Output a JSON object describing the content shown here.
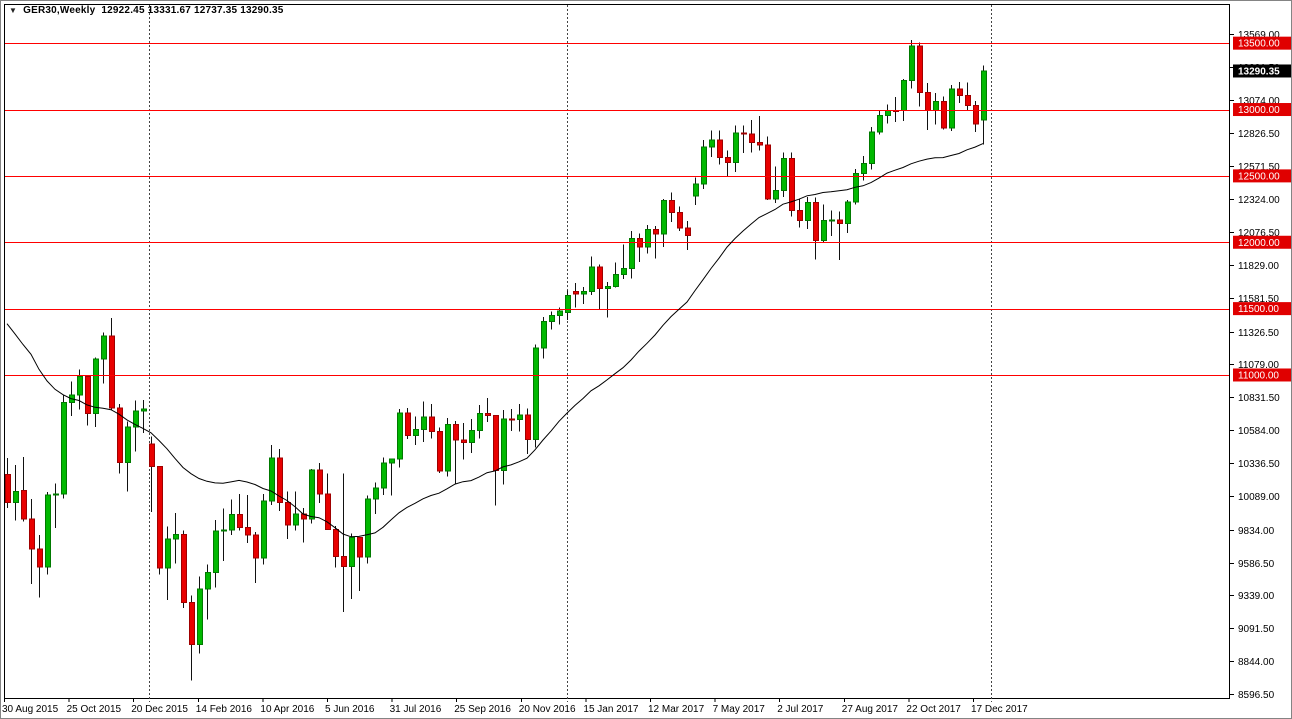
{
  "header": {
    "symbol_timeframe": "GER30,Weekly",
    "ohlc_text": "12922.45 13331.67 12737.35 13290.35",
    "dropdown_arrow": "▼"
  },
  "colors": {
    "background": "#ffffff",
    "plot_border": "#000000",
    "bull_fill": "#00b800",
    "bull_border": "#007a00",
    "bear_fill": "#e80000",
    "bear_border": "#a00000",
    "wick": "#111111",
    "level_line": "#ff0000",
    "level_badge_bg": "#e00000",
    "current_badge_bg": "#000000",
    "badge_text": "#ffffff",
    "axis_text": "#000000",
    "ma_line": "#000000",
    "year_separator": "#444444"
  },
  "chart_data": {
    "type": "candlestick",
    "title": "GER30,Weekly",
    "symbol": "GER30",
    "timeframe": "Weekly",
    "last_candle_ohlc": {
      "open": 12922.45,
      "high": 13331.67,
      "low": 12737.35,
      "close": 13290.35
    },
    "current_price": 13290.35,
    "y_axis": {
      "min": 8596.5,
      "max": 13569.0,
      "ticks": [
        13569.0,
        13321.5,
        13074.0,
        12826.5,
        12571.5,
        12324.0,
        12076.5,
        11829.0,
        11581.5,
        11326.5,
        11079.0,
        10831.5,
        10584.0,
        10336.5,
        10089.0,
        9834.0,
        9586.5,
        9339.0,
        9091.5,
        8844.0,
        8596.5
      ]
    },
    "horizontal_levels": [
      13500.0,
      13000.0,
      12500.0,
      12000.0,
      11500.0,
      11000.0
    ],
    "x_axis": {
      "labels": [
        "30 Aug 2015",
        "25 Oct 2015",
        "20 Dec 2015",
        "14 Feb 2016",
        "10 Apr 2016",
        "5 Jun 2016",
        "31 Jul 2016",
        "25 Sep 2016",
        "20 Nov 2016",
        "15 Jan 2017",
        "12 Mar 2017",
        "7 May 2017",
        "2 Jul 2017",
        "27 Aug 2017",
        "22 Oct 2017",
        "17 Dec 2017"
      ],
      "weeks_per_label": 8
    },
    "year_separator_weeks": [
      17.75,
      70,
      123
    ],
    "ma": {
      "period": 25,
      "pre_closes": [
        12039,
        11901,
        11551,
        12374,
        12272,
        11689,
        11811,
        11587,
        11350,
        11532,
        11568,
        11459,
        11040,
        11196,
        11673,
        11574,
        11490,
        11154,
        10985,
        11327,
        11604,
        11014,
        10124,
        10299
      ]
    },
    "candles": [
      [
        10250,
        10373,
        9997,
        10038
      ],
      [
        10040,
        10320,
        9902,
        10123
      ],
      [
        10130,
        10383,
        9897,
        9916
      ],
      [
        9916,
        10065,
        9427,
        9688
      ],
      [
        9688,
        9794,
        9325,
        9553
      ],
      [
        9553,
        10120,
        9495,
        10096
      ],
      [
        10096,
        10181,
        9848,
        10104
      ],
      [
        10104,
        10850,
        10070,
        10794
      ],
      [
        10794,
        10950,
        10692,
        10850
      ],
      [
        10850,
        11040,
        10741,
        10988
      ],
      [
        10988,
        11000,
        10620,
        10708
      ],
      [
        10708,
        11130,
        10608,
        11120
      ],
      [
        11120,
        11321,
        10937,
        11293
      ],
      [
        11293,
        11430,
        10741,
        10752
      ],
      [
        10752,
        10780,
        10259,
        10340
      ],
      [
        10340,
        10650,
        10123,
        10608
      ],
      [
        10608,
        10808,
        10424,
        10727
      ],
      [
        10727,
        10810,
        10562,
        10743
      ],
      [
        10480,
        10535,
        9969,
        10310
      ],
      [
        10310,
        10310,
        9498,
        9545
      ],
      [
        9545,
        9860,
        9305,
        9764
      ],
      [
        9764,
        9960,
        9580,
        9798
      ],
      [
        9798,
        9829,
        9243,
        9286
      ],
      [
        9286,
        9340,
        8699,
        8968
      ],
      [
        8968,
        9480,
        8900,
        9388
      ],
      [
        9388,
        9573,
        9157,
        9513
      ],
      [
        9513,
        9907,
        9400,
        9824
      ],
      [
        9824,
        9995,
        9600,
        9831
      ],
      [
        9831,
        10060,
        9796,
        9950
      ],
      [
        9950,
        10104,
        9830,
        9851
      ],
      [
        9851,
        10094,
        9733,
        9794
      ],
      [
        9794,
        9818,
        9432,
        9622
      ],
      [
        9622,
        10104,
        9571,
        10051
      ],
      [
        10051,
        10474,
        10021,
        10373
      ],
      [
        10373,
        10444,
        9975,
        10039
      ],
      [
        10039,
        10123,
        9763,
        9870
      ],
      [
        9870,
        10123,
        9829,
        9952
      ],
      [
        9952,
        9998,
        9737,
        9916
      ],
      [
        9916,
        10290,
        9880,
        10286
      ],
      [
        10286,
        10335,
        10036,
        10103
      ],
      [
        10103,
        10259,
        9832,
        9834
      ],
      [
        9834,
        9864,
        9550,
        9631
      ],
      [
        9631,
        10257,
        9214,
        9557
      ],
      [
        9557,
        9806,
        9314,
        9776
      ],
      [
        9776,
        9780,
        9373,
        9629
      ],
      [
        9629,
        10093,
        9580,
        10067
      ],
      [
        10067,
        10190,
        9953,
        10147
      ],
      [
        10147,
        10377,
        10094,
        10337
      ],
      [
        10337,
        10371,
        10092,
        10367
      ],
      [
        10367,
        10744,
        10302,
        10713
      ],
      [
        10713,
        10752,
        10518,
        10544
      ],
      [
        10544,
        10688,
        10471,
        10588
      ],
      [
        10588,
        10802,
        10495,
        10684
      ],
      [
        10684,
        10780,
        10520,
        10574
      ],
      [
        10574,
        10604,
        10262,
        10276
      ],
      [
        10276,
        10676,
        10236,
        10627
      ],
      [
        10627,
        10655,
        10180,
        10511
      ],
      [
        10511,
        10638,
        10365,
        10491
      ],
      [
        10491,
        10668,
        10414,
        10580
      ],
      [
        10580,
        10774,
        10520,
        10711
      ],
      [
        10711,
        10827,
        10644,
        10696
      ],
      [
        10696,
        10700,
        10015,
        10282
      ],
      [
        10282,
        10735,
        10175,
        10668
      ],
      [
        10668,
        10745,
        10579,
        10665
      ],
      [
        10665,
        10781,
        10576,
        10699
      ],
      [
        10699,
        10749,
        10403,
        10514
      ],
      [
        10514,
        11230,
        10455,
        11204
      ],
      [
        11204,
        11435,
        11126,
        11404
      ],
      [
        11404,
        11480,
        11343,
        11450
      ],
      [
        11450,
        11508,
        11379,
        11481
      ],
      [
        11470,
        11637,
        11414,
        11599
      ],
      [
        11629,
        11692,
        11510,
        11612
      ],
      [
        11612,
        11663,
        11535,
        11630
      ],
      [
        11630,
        11893,
        11603,
        11814
      ],
      [
        11814,
        11831,
        11499,
        11651
      ],
      [
        11651,
        11701,
        11434,
        11667
      ],
      [
        11667,
        11847,
        11660,
        11757
      ],
      [
        11757,
        11983,
        11722,
        11804
      ],
      [
        11804,
        12083,
        11728,
        12027
      ],
      [
        12027,
        12067,
        11850,
        11963
      ],
      [
        11963,
        12130,
        11915,
        12095
      ],
      [
        12095,
        12122,
        11878,
        12064
      ],
      [
        12064,
        12325,
        11963,
        12313
      ],
      [
        12313,
        12375,
        12154,
        12225
      ],
      [
        12225,
        12268,
        12085,
        12109
      ],
      [
        12109,
        12160,
        11941,
        12049
      ],
      [
        12350,
        12486,
        12280,
        12438
      ],
      [
        12438,
        12771,
        12400,
        12717
      ],
      [
        12717,
        12842,
        12644,
        12770
      ],
      [
        12770,
        12842,
        12586,
        12639
      ],
      [
        12639,
        12692,
        12490,
        12602
      ],
      [
        12602,
        12879,
        12530,
        12823
      ],
      [
        12823,
        12878,
        12671,
        12816
      ],
      [
        12816,
        12921,
        12677,
        12753
      ],
      [
        12753,
        12952,
        12690,
        12733
      ],
      [
        12733,
        12796,
        12319,
        12325
      ],
      [
        12325,
        12569,
        12296,
        12389
      ],
      [
        12389,
        12676,
        12340,
        12632
      ],
      [
        12632,
        12677,
        12194,
        12240
      ],
      [
        12240,
        12330,
        12113,
        12163
      ],
      [
        12163,
        12340,
        12100,
        12298
      ],
      [
        12298,
        12337,
        11869,
        12014
      ],
      [
        12014,
        12285,
        11993,
        12165
      ],
      [
        12165,
        12240,
        12046,
        12168
      ],
      [
        12168,
        12230,
        11868,
        12143
      ],
      [
        12143,
        12318,
        12070,
        12304
      ],
      [
        12304,
        12551,
        12284,
        12519
      ],
      [
        12519,
        12649,
        12464,
        12592
      ],
      [
        12592,
        12869,
        12548,
        12829
      ],
      [
        12829,
        12993,
        12810,
        12956
      ],
      [
        12956,
        13037,
        12893,
        12992
      ],
      [
        12992,
        13094,
        12907,
        12991
      ],
      [
        12991,
        13230,
        12912,
        13217
      ],
      [
        13217,
        13525,
        13160,
        13479
      ],
      [
        13479,
        13505,
        13021,
        13127
      ],
      [
        13127,
        13200,
        12847,
        12994
      ],
      [
        12994,
        13124,
        12889,
        13060
      ],
      [
        13060,
        13099,
        12848,
        12861
      ],
      [
        12861,
        13183,
        12838,
        13154
      ],
      [
        13154,
        13206,
        13050,
        13104
      ],
      [
        13104,
        13202,
        12996,
        13030
      ],
      [
        13030,
        13064,
        12830,
        12890
      ],
      [
        12922.45,
        13331.67,
        12737.35,
        13290.35
      ]
    ]
  }
}
